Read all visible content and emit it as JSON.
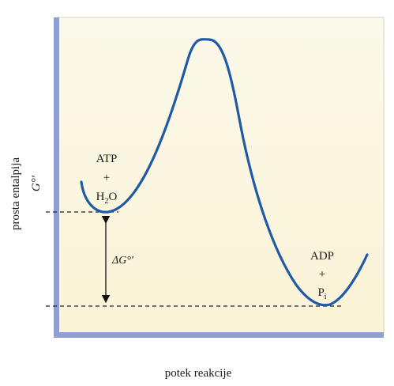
{
  "diagram": {
    "y_axis_label": "prosta entalpija",
    "y_axis_symbol": "G°′",
    "x_axis_label": "potek reakcije",
    "reactants": {
      "line1": "ATP",
      "plus": "+",
      "line3_main": "H",
      "line3_sub": "2",
      "line3_tail": "O"
    },
    "products": {
      "line1": "ADP",
      "plus": "+",
      "line3_main": "P",
      "line3_sub": "i"
    },
    "delta_label": "ΔG°′"
  },
  "colors": {
    "background_top": "#fbf9ea",
    "background_bottom": "#fbf3d6",
    "axis": "#8f9fcf",
    "curve": "#1f5aa6",
    "dashed": "#222222"
  }
}
